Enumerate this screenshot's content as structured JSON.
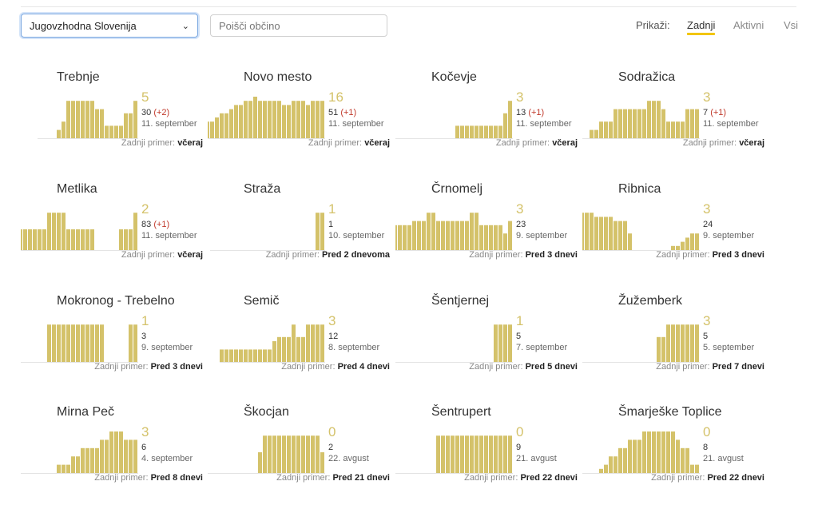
{
  "header": {
    "region_select": "Jugovzhodna Slovenija",
    "search_placeholder": "Poišči občino",
    "filter_label": "Prikaži:",
    "filter_tabs": [
      "Zadnji",
      "Aktivni",
      "Vsi"
    ],
    "active_filter": "Zadnji"
  },
  "colors": {
    "bar": "#d4c26a",
    "accent": "#f2c500",
    "delta": "#c0392b"
  },
  "last_case_label": "Zadnji primer:",
  "cards": [
    {
      "name": "Trebnje",
      "active": "5",
      "total": "30",
      "delta": "(+2)",
      "date": "11. september",
      "last": "včeraj",
      "bars": [
        0,
        0,
        0,
        0,
        2,
        4,
        9,
        9,
        9,
        9,
        9,
        9,
        7,
        7,
        3,
        3,
        3,
        3,
        6,
        6,
        9
      ]
    },
    {
      "name": "Novo mesto",
      "active": "16",
      "total": "51",
      "delta": "(+1)",
      "date": "11. september",
      "last": "včeraj",
      "bars": [
        3,
        3,
        4,
        4,
        5,
        6,
        6,
        7,
        8,
        8,
        9,
        9,
        10,
        9,
        9,
        9,
        9,
        9,
        8,
        8,
        9,
        9,
        9,
        8,
        9,
        9,
        9
      ]
    },
    {
      "name": "Kočevje",
      "active": "3",
      "total": "13",
      "delta": "(+1)",
      "date": "11. september",
      "last": "včeraj",
      "bars": [
        0,
        0,
        0,
        0,
        0,
        0,
        0,
        0,
        0,
        0,
        0,
        0,
        0,
        0,
        0,
        3,
        3,
        3,
        3,
        3,
        3,
        3,
        3,
        3,
        3,
        6,
        9
      ]
    },
    {
      "name": "Sodražica",
      "active": "3",
      "total": "7",
      "delta": "(+1)",
      "date": "11. september",
      "last": "včeraj",
      "bars": [
        0,
        0,
        0,
        0,
        0,
        0,
        0,
        0,
        0,
        0,
        2,
        2,
        4,
        4,
        4,
        7,
        7,
        7,
        7,
        7,
        7,
        7,
        9,
        9,
        9,
        7,
        4,
        4,
        4,
        4,
        7,
        7,
        7
      ]
    },
    {
      "name": "Metlika",
      "active": "2",
      "total": "83",
      "delta": "(+1)",
      "date": "11. september",
      "last": "včeraj",
      "bars": [
        5,
        5,
        5,
        5,
        5,
        5,
        5,
        9,
        9,
        9,
        9,
        5,
        5,
        5,
        5,
        5,
        5,
        0,
        0,
        0,
        0,
        0,
        5,
        5,
        5,
        9
      ]
    },
    {
      "name": "Straža",
      "active": "1",
      "total": "1",
      "delta": "",
      "date": "10. september",
      "last": "Pred 2 dnevoma",
      "bars": [
        0,
        0,
        0,
        0,
        0,
        0,
        0,
        0,
        0,
        0,
        0,
        0,
        0,
        0,
        0,
        0,
        0,
        0,
        0,
        0,
        0,
        0,
        9,
        9
      ]
    },
    {
      "name": "Črnomelj",
      "active": "3",
      "total": "23",
      "delta": "",
      "date": "9. september",
      "last": "Pred 3 dnevi",
      "bars": [
        6,
        6,
        6,
        6,
        6,
        6,
        6,
        7,
        7,
        7,
        9,
        9,
        7,
        7,
        7,
        7,
        7,
        7,
        7,
        9,
        9,
        6,
        6,
        6,
        6,
        6,
        4,
        7
      ]
    },
    {
      "name": "Ribnica",
      "active": "3",
      "total": "24",
      "delta": "",
      "date": "9. september",
      "last": "Pred 3 dnevi",
      "bars": [
        7,
        9,
        9,
        9,
        9,
        9,
        9,
        9,
        9,
        9,
        8,
        8,
        8,
        8,
        7,
        7,
        7,
        4,
        0,
        0,
        0,
        0,
        0,
        0,
        0,
        0,
        1,
        1,
        2,
        3,
        4,
        4
      ]
    },
    {
      "name": "Mokronog - Trebelno",
      "active": "1",
      "total": "3",
      "delta": "",
      "date": "9. september",
      "last": "Pred 3 dnevi",
      "bars": [
        0,
        0,
        0,
        0,
        0,
        0,
        0,
        0,
        0,
        9,
        9,
        9,
        9,
        9,
        9,
        9,
        9,
        9,
        9,
        9,
        9,
        0,
        0,
        0,
        0,
        0,
        9,
        9
      ]
    },
    {
      "name": "Semič",
      "active": "3",
      "total": "12",
      "delta": "",
      "date": "8. september",
      "last": "Pred 4 dnevi",
      "bars": [
        3,
        3,
        3,
        3,
        3,
        3,
        3,
        3,
        3,
        3,
        3,
        5,
        6,
        6,
        6,
        9,
        6,
        6,
        9,
        9,
        9,
        9
      ]
    },
    {
      "name": "Šentjernej",
      "active": "1",
      "total": "5",
      "delta": "",
      "date": "7. september",
      "last": "Pred 5 dnevi",
      "bars": [
        0,
        0,
        0,
        0,
        0,
        0,
        0,
        0,
        0,
        0,
        0,
        0,
        0,
        0,
        0,
        0,
        0,
        0,
        0,
        0,
        0,
        0,
        0,
        0,
        9,
        9,
        9,
        9
      ]
    },
    {
      "name": "Žužemberk",
      "active": "3",
      "total": "5",
      "delta": "",
      "date": "5. september",
      "last": "Pred 7 dnevi",
      "bars": [
        0,
        0,
        0,
        0,
        0,
        0,
        0,
        0,
        0,
        0,
        0,
        0,
        0,
        0,
        0,
        0,
        0,
        0,
        0,
        0,
        0,
        6,
        6,
        9,
        9,
        9,
        9,
        9,
        9,
        9
      ]
    },
    {
      "name": "Mirna Peč",
      "active": "3",
      "total": "6",
      "delta": "",
      "date": "4. september",
      "last": "Pred 8 dnevi",
      "bars": [
        0,
        0,
        0,
        0,
        0,
        0,
        0,
        0,
        0,
        0,
        0,
        0,
        2,
        2,
        2,
        4,
        4,
        6,
        6,
        6,
        6,
        8,
        8,
        10,
        10,
        10,
        8,
        8,
        8
      ]
    },
    {
      "name": "Škocjan",
      "active": "0",
      "total": "2",
      "delta": "",
      "date": "22. avgust",
      "last": "Pred 21 dnevi",
      "bars": [
        0,
        0,
        0,
        0,
        0,
        0,
        0,
        0,
        0,
        0,
        0,
        0,
        0,
        0,
        0,
        0,
        0,
        0,
        5,
        9,
        9,
        9,
        9,
        9,
        9,
        9,
        9,
        9,
        9,
        9,
        9,
        5
      ]
    },
    {
      "name": "Šentrupert",
      "active": "0",
      "total": "9",
      "delta": "",
      "date": "21. avgust",
      "last": "Pred 22 dnevi",
      "bars": [
        0,
        0,
        0,
        0,
        0,
        0,
        0,
        0,
        0,
        0,
        0,
        0,
        0,
        0,
        0,
        0,
        0,
        9,
        9,
        9,
        9,
        9,
        9,
        9,
        9,
        9,
        9,
        9,
        9,
        9,
        9,
        9,
        9
      ]
    },
    {
      "name": "Šmarješke Toplice",
      "active": "0",
      "total": "8",
      "delta": "",
      "date": "21. avgust",
      "last": "Pred 22 dnevi",
      "bars": [
        0,
        0,
        0,
        0,
        0,
        0,
        0,
        0,
        0,
        1,
        2,
        4,
        4,
        6,
        6,
        8,
        8,
        8,
        10,
        10,
        10,
        10,
        10,
        10,
        10,
        8,
        6,
        6,
        2,
        2
      ]
    }
  ]
}
